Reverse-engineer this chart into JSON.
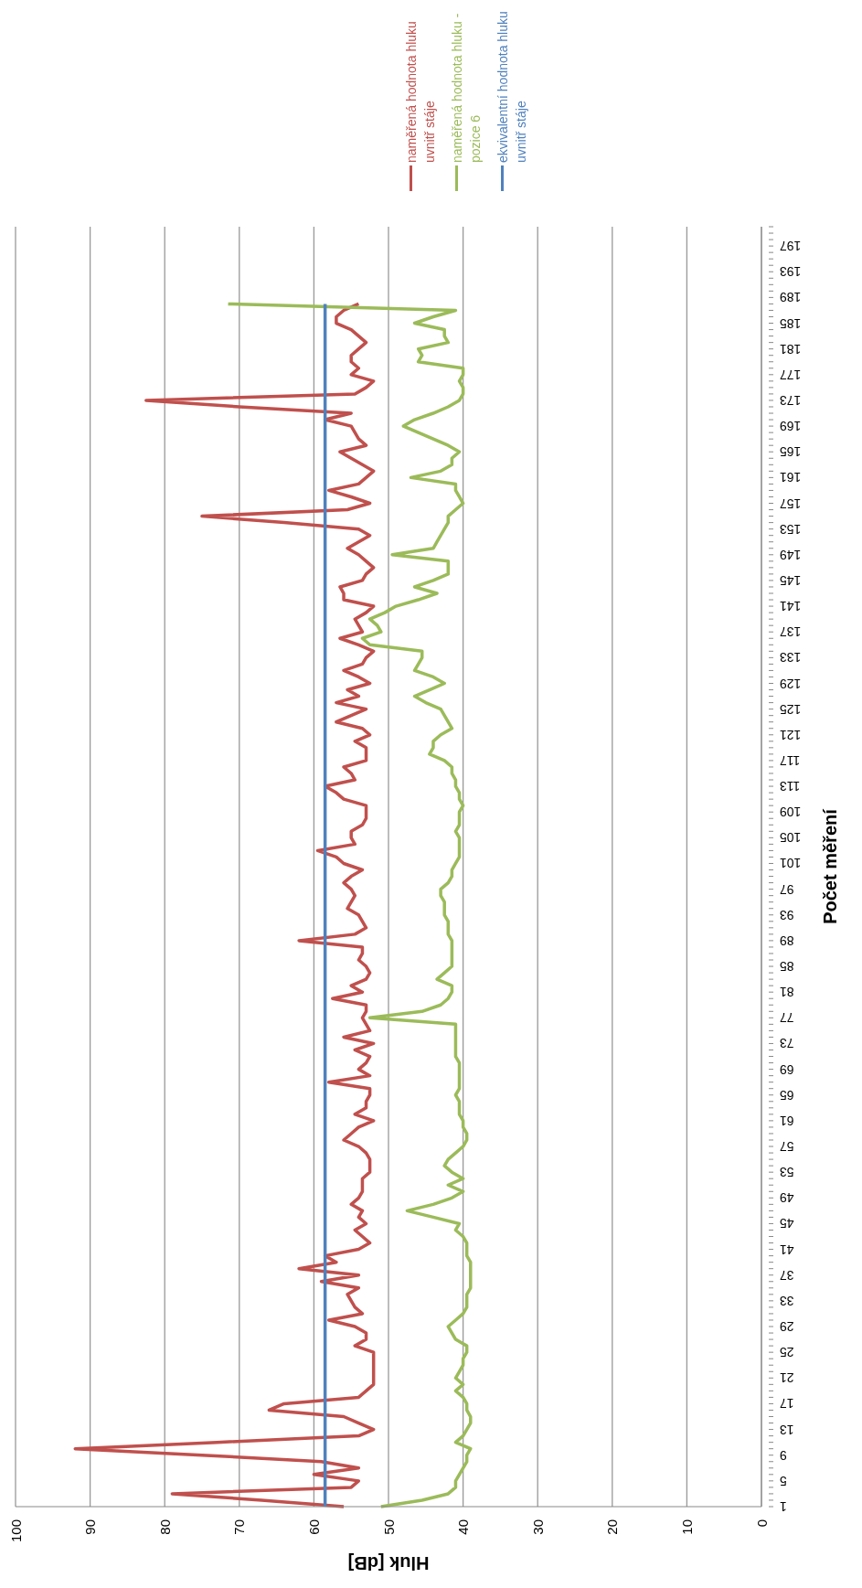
{
  "chart_data": {
    "type": "line",
    "orientation": "horizontal",
    "xlabel": "Hluk [dB]",
    "ylabel": "Počet měření",
    "categories": [
      null,
      null,
      null,
      "197",
      null,
      null,
      null,
      "193",
      null,
      null,
      null,
      "189",
      null,
      null,
      null,
      "185",
      null,
      null,
      null,
      "181",
      null,
      null,
      null,
      "177",
      null,
      null,
      null,
      "173",
      null,
      null,
      null,
      "169",
      null,
      null,
      null,
      "165",
      null,
      null,
      null,
      "161",
      null,
      null,
      null,
      "157",
      null,
      null,
      null,
      "153",
      null,
      null,
      null,
      "149",
      null,
      null,
      null,
      "145",
      null,
      null,
      null,
      "141",
      null,
      null,
      null,
      "137",
      null,
      null,
      null,
      "133",
      null,
      null,
      null,
      "129",
      null,
      null,
      null,
      "125",
      null,
      null,
      null,
      "121",
      null,
      null,
      null,
      "117",
      null,
      null,
      null,
      "113",
      null,
      null,
      null,
      "109",
      null,
      null,
      null,
      "105",
      null,
      null,
      null,
      "101",
      null,
      null,
      null,
      "97",
      null,
      null,
      null,
      "93",
      null,
      null,
      null,
      "89",
      null,
      null,
      null,
      "85",
      null,
      null,
      null,
      "81",
      null,
      null,
      null,
      "77",
      null,
      null,
      null,
      "73",
      null,
      null,
      null,
      "69",
      null,
      null,
      null,
      "65",
      null,
      null,
      null,
      "61",
      null,
      null,
      null,
      "57",
      null,
      null,
      null,
      "53",
      null,
      null,
      null,
      "49",
      null,
      null,
      null,
      "45",
      null,
      null,
      null,
      "41",
      null,
      null,
      null,
      "37",
      null,
      null,
      null,
      "33",
      null,
      null,
      null,
      "29",
      null,
      null,
      null,
      "25",
      null,
      null,
      null,
      "21",
      null,
      null,
      null,
      "17",
      null,
      null,
      null,
      "13",
      null,
      null,
      null,
      "9",
      null,
      null,
      null,
      "5",
      null,
      null,
      null,
      "1"
    ],
    "series": [
      {
        "name": "naměřená hodnota hluku uvnitř stáje",
        "color": "#c0504d",
        "values": [
          null,
          null,
          null,
          null,
          null,
          null,
          null,
          null,
          null,
          null,
          null,
          null,
          54,
          56,
          57,
          57,
          55,
          54,
          53,
          54,
          55,
          55,
          54,
          55,
          52,
          53,
          54.5,
          82.5,
          70,
          55,
          58.5,
          55,
          54.5,
          54,
          53,
          56.5,
          55,
          53.5,
          52,
          53,
          54,
          58,
          55,
          52.5,
          55.5,
          75,
          64,
          54,
          52.5,
          54,
          55.5,
          54,
          53,
          52,
          53,
          53.5,
          56.5,
          56,
          56,
          52,
          53,
          54.5,
          54,
          53.5,
          56.5,
          54,
          52,
          53,
          53.5,
          56,
          54,
          52.5,
          55.5,
          54,
          57,
          53,
          55,
          57,
          53.5,
          52.5,
          54.5,
          53,
          53,
          53,
          56,
          55,
          54.5,
          58.5,
          57,
          56,
          53,
          53,
          53,
          53.5,
          55,
          55,
          54.5,
          59.5,
          57,
          56,
          53.5,
          55,
          56,
          55,
          54.5,
          55,
          55.5,
          54,
          53.5,
          53,
          54.5,
          62,
          53.5,
          53.5,
          54,
          53,
          52.5,
          53,
          55,
          53.5,
          57.5,
          53,
          53,
          53.5,
          53,
          52.5,
          56,
          52,
          54.5,
          52.5,
          53,
          54,
          52.5,
          58,
          52.5,
          52.5,
          53,
          53,
          54.5,
          52,
          54,
          55,
          56,
          54,
          53,
          52.5,
          52.5,
          52.5,
          53.5,
          53.5,
          53.5,
          54,
          55,
          53.5,
          54,
          53,
          54.5,
          53.5,
          52.5,
          54,
          58.5,
          57,
          62,
          54,
          59,
          54,
          55.5,
          55,
          54.5,
          53.5,
          58,
          54.5,
          53,
          53,
          54.5,
          52,
          52,
          52,
          52,
          52,
          52,
          53,
          54,
          64,
          66,
          56,
          54,
          52,
          54,
          73,
          92,
          75,
          59,
          54,
          60,
          54,
          55,
          79,
          67,
          56
        ]
      },
      {
        "name": "naměřená hodnota hluku - pozice 6",
        "color": "#9bbb59",
        "values": [
          null,
          null,
          null,
          null,
          null,
          null,
          null,
          null,
          null,
          null,
          null,
          null,
          71.5,
          41,
          44,
          46.5,
          42.5,
          42.5,
          42,
          46,
          45.5,
          46,
          40,
          40,
          40.5,
          40,
          40,
          40.5,
          42,
          44,
          46.5,
          48,
          46,
          44,
          42,
          40.5,
          41.5,
          41.5,
          43,
          47,
          41,
          41,
          40.5,
          40,
          41,
          42,
          42,
          42.5,
          43,
          43.5,
          44,
          49.5,
          42,
          42,
          42,
          44,
          46.5,
          43.5,
          46,
          49,
          50.5,
          52.5,
          51.5,
          51,
          53.5,
          52.5,
          45.5,
          45.5,
          46,
          46.5,
          44,
          42.5,
          44.5,
          46.5,
          45,
          43,
          42.5,
          42,
          41.5,
          43,
          44,
          44,
          44.5,
          42.5,
          41.5,
          41.5,
          41,
          41,
          40.5,
          40.5,
          40,
          40.5,
          40.5,
          40.5,
          41,
          40.5,
          40.5,
          40.5,
          40.5,
          41,
          41.5,
          41.5,
          42,
          43,
          43,
          42.5,
          42.5,
          42.5,
          42,
          42,
          42,
          41.5,
          41.5,
          41.5,
          41.5,
          41.5,
          42.5,
          43.5,
          41.5,
          41.5,
          42,
          43,
          45.5,
          52.5,
          41,
          41,
          41,
          41,
          41,
          41,
          40.5,
          40.5,
          40.5,
          40.5,
          40.5,
          41,
          40.5,
          40.5,
          40.5,
          40,
          40,
          39.5,
          39.5,
          40,
          41,
          42,
          42.5,
          41.5,
          40,
          42,
          40,
          41.5,
          44,
          47.5,
          44,
          40.5,
          41,
          40,
          39.5,
          39.5,
          39.5,
          39,
          39,
          39,
          39,
          39,
          39.5,
          39.5,
          39.5,
          40,
          41,
          42,
          41.5,
          41,
          39.5,
          39.5,
          40,
          40,
          40.5,
          41,
          40,
          41,
          40,
          39.5,
          39.5,
          39,
          39,
          39.5,
          40,
          41,
          39,
          39.5,
          39.5,
          40,
          40.5,
          41,
          41,
          42,
          45.5,
          51
        ]
      },
      {
        "name": "ekvivalentní hodnota hluku uvnitř stáje",
        "color": "#4f81bd",
        "values": [
          null,
          null,
          null,
          null,
          null,
          null,
          null,
          null,
          null,
          null,
          null,
          null,
          58.5,
          58.5,
          58.5,
          58.5,
          58.5,
          58.5,
          58.5,
          58.5,
          58.5,
          58.5,
          58.5,
          58.5,
          58.5,
          58.5,
          58.5,
          58.5,
          58.5,
          58.5,
          58.5,
          58.5,
          58.5,
          58.5,
          58.5,
          58.5,
          58.5,
          58.5,
          58.5,
          58.5,
          58.5,
          58.5,
          58.5,
          58.5,
          58.5,
          58.5,
          58.5,
          58.5,
          58.5,
          58.5,
          58.5,
          58.5,
          58.5,
          58.5,
          58.5,
          58.5,
          58.5,
          58.5,
          58.5,
          58.5,
          58.5,
          58.5,
          58.5,
          58.5,
          58.5,
          58.5,
          58.5,
          58.5,
          58.5,
          58.5,
          58.5,
          58.5,
          58.5,
          58.5,
          58.5,
          58.5,
          58.5,
          58.5,
          58.5,
          58.5,
          58.5,
          58.5,
          58.5,
          58.5,
          58.5,
          58.5,
          58.5,
          58.5,
          58.5,
          58.5,
          58.5,
          58.5,
          58.5,
          58.5,
          58.5,
          58.5,
          58.5,
          58.5,
          58.5,
          58.5,
          58.5,
          58.5,
          58.5,
          58.5,
          58.5,
          58.5,
          58.5,
          58.5,
          58.5,
          58.5,
          58.5,
          58.5,
          58.5,
          58.5,
          58.5,
          58.5,
          58.5,
          58.5,
          58.5,
          58.5,
          58.5,
          58.5,
          58.5,
          58.5,
          58.5,
          58.5,
          58.5,
          58.5,
          58.5,
          58.5,
          58.5,
          58.5,
          58.5,
          58.5,
          58.5,
          58.5,
          58.5,
          58.5,
          58.5,
          58.5,
          58.5,
          58.5,
          58.5,
          58.5,
          58.5,
          58.5,
          58.5,
          58.5,
          58.5,
          58.5,
          58.5,
          58.5,
          58.5,
          58.5,
          58.5,
          58.5,
          58.5,
          58.5,
          58.5,
          58.5,
          58.5,
          58.5,
          58.5,
          58.5,
          58.5,
          58.5,
          58.5,
          58.5,
          58.5,
          58.5,
          58.5,
          58.5,
          58.5,
          58.5,
          58.5,
          58.5,
          58.5,
          58.5,
          58.5,
          58.5,
          58.5,
          58.5,
          58.5,
          58.5,
          58.5,
          58.5,
          58.5,
          58.5,
          58.5,
          58.5,
          58.5,
          58.5,
          58.5,
          58.5,
          58.5,
          58.5,
          58.5,
          58.5,
          58.5,
          58.5
        ]
      }
    ],
    "xlim": [
      100,
      0
    ],
    "xticks": [
      100,
      90,
      80,
      70,
      60,
      50,
      40,
      30,
      20,
      10,
      0
    ],
    "grid": "x",
    "legend": "top",
    "marker": "none",
    "line_style": "solid"
  }
}
